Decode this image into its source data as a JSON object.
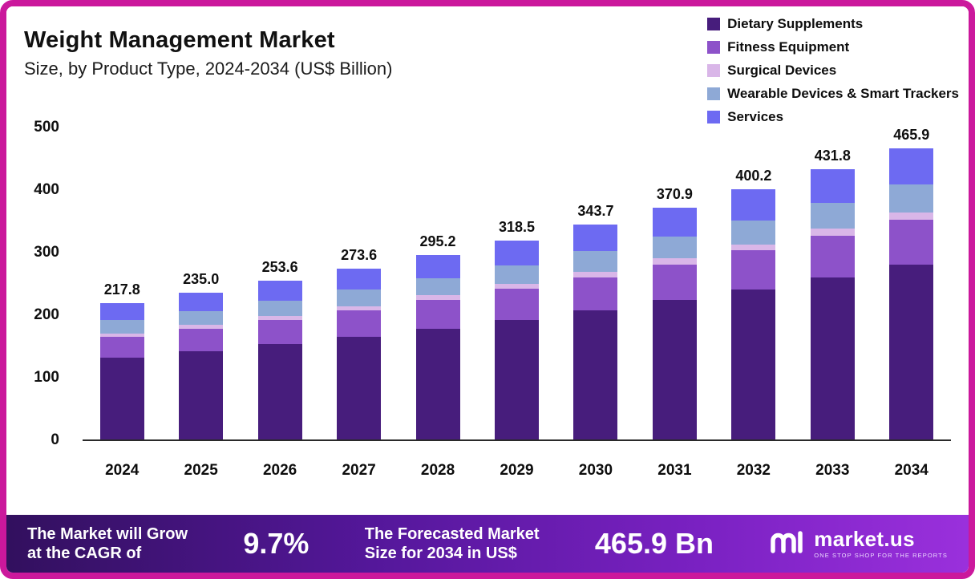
{
  "header": {
    "title": "Weight Management Market",
    "subtitle": "Size, by Product Type, 2024-2034 (US$ Billion)"
  },
  "chart_data": {
    "type": "bar",
    "stacked": true,
    "title": "Weight Management Market Size, by Product Type, 2024-2034 (US$ Billion)",
    "xlabel": "",
    "ylabel": "US$ Billion",
    "ylim": [
      0,
      500
    ],
    "yticks": [
      0,
      100,
      200,
      300,
      400,
      500
    ],
    "grid": false,
    "legend_position": "top-right",
    "categories": [
      "2024",
      "2025",
      "2026",
      "2027",
      "2028",
      "2029",
      "2030",
      "2031",
      "2032",
      "2033",
      "2034"
    ],
    "totals": [
      217.8,
      235.0,
      253.6,
      273.6,
      295.2,
      318.5,
      343.7,
      370.9,
      400.2,
      431.8,
      465.9
    ],
    "series": [
      {
        "name": "Dietary Supplements",
        "color": "#471d7c",
        "values": [
          130.7,
          141.0,
          152.2,
          164.2,
          177.1,
          191.1,
          206.2,
          222.5,
          240.1,
          259.1,
          279.5
        ]
      },
      {
        "name": "Fitness Equipment",
        "color": "#8d52c9",
        "values": [
          33.8,
          36.4,
          39.3,
          42.4,
          45.8,
          49.4,
          53.3,
          57.5,
          62.0,
          66.9,
          72.2
        ]
      },
      {
        "name": "Surgical Devices",
        "color": "#d9b6e8",
        "values": [
          5.4,
          5.9,
          6.3,
          6.8,
          7.4,
          8.0,
          8.6,
          9.3,
          10.0,
          10.8,
          11.7
        ]
      },
      {
        "name": "Wearable Devices & Smart Trackers",
        "color": "#8ea9d6",
        "values": [
          20.7,
          22.3,
          24.1,
          26.0,
          28.0,
          30.2,
          32.6,
          35.2,
          38.0,
          41.0,
          44.3
        ]
      },
      {
        "name": "Services",
        "color": "#6d6af2",
        "values": [
          27.2,
          29.4,
          31.7,
          34.2,
          36.9,
          39.8,
          43.0,
          46.4,
          50.1,
          54.0,
          58.2
        ]
      }
    ]
  },
  "banner": {
    "cagr_label_line1": "The Market will Grow",
    "cagr_label_line2": "at the CAGR of",
    "cagr_value": "9.7%",
    "forecast_label_line1": "The Forecasted Market",
    "forecast_label_line2": "Size for 2034 in US$",
    "forecast_value": "465.9 Bn",
    "brand_name": "market.us",
    "brand_tagline": "ONE STOP SHOP FOR THE REPORTS"
  },
  "colors": {
    "border": "#cb189c",
    "banner_gradient_start": "#32105e",
    "banner_gradient_end": "#9a30dc",
    "axis_line": "#2a2a2a"
  }
}
